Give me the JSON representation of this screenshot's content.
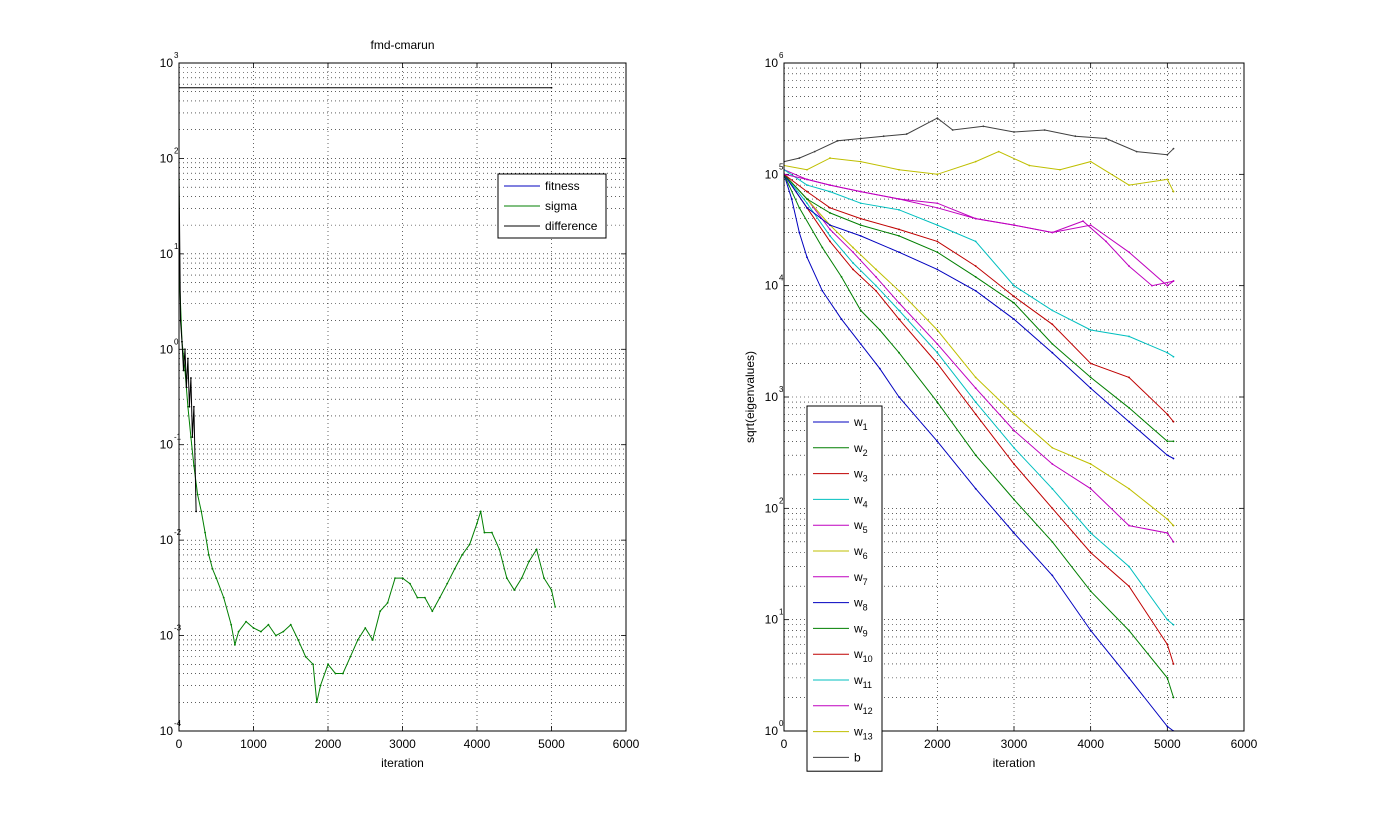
{
  "chart_data": [
    {
      "type": "line",
      "title": "fmd-cmarun",
      "xlabel": "iteration",
      "ylabel": "",
      "xlim": [
        0,
        6000
      ],
      "ylim": [
        0.0001,
        1000
      ],
      "yscale": "log",
      "grid": true,
      "legend_position": "upper-right",
      "x_ticks": [
        0,
        1000,
        2000,
        3000,
        4000,
        5000,
        6000
      ],
      "y_ticks": [
        {
          "value": 0.0001,
          "base": "10",
          "exp": "-4"
        },
        {
          "value": 0.001,
          "base": "10",
          "exp": "-3"
        },
        {
          "value": 0.01,
          "base": "10",
          "exp": "-2"
        },
        {
          "value": 0.1,
          "base": "10",
          "exp": "-1"
        },
        {
          "value": 1,
          "base": "10",
          "exp": "0"
        },
        {
          "value": 10,
          "base": "10",
          "exp": "1"
        },
        {
          "value": 100,
          "base": "10",
          "exp": "2"
        },
        {
          "value": 1000,
          "base": "10",
          "exp": "3"
        }
      ],
      "series": [
        {
          "name": "fitness",
          "color": "#0000bf",
          "x": [],
          "y": []
        },
        {
          "name": "sigma",
          "color": "#007f00",
          "x": [
            0,
            10,
            40,
            80,
            120,
            160,
            200,
            250,
            300,
            350,
            400,
            450,
            500,
            600,
            700,
            750,
            800,
            900,
            1000,
            1100,
            1200,
            1300,
            1400,
            1500,
            1600,
            1700,
            1800,
            1850,
            1900,
            2000,
            2100,
            2200,
            2300,
            2400,
            2500,
            2600,
            2700,
            2800,
            2900,
            3000,
            3100,
            3200,
            3300,
            3400,
            3500,
            3600,
            3700,
            3800,
            3900,
            4000,
            4050,
            4100,
            4200,
            4300,
            4400,
            4500,
            4600,
            4700,
            4800,
            4900,
            5000,
            5050
          ],
          "y": [
            60,
            5,
            1.2,
            0.6,
            0.25,
            0.12,
            0.06,
            0.03,
            0.02,
            0.012,
            0.007,
            0.005,
            0.004,
            0.0025,
            0.0013,
            0.0008,
            0.0011,
            0.0014,
            0.0012,
            0.0011,
            0.0013,
            0.001,
            0.0011,
            0.0013,
            0.0009,
            0.0006,
            0.0005,
            0.0002,
            0.0003,
            0.0005,
            0.0004,
            0.0004,
            0.0006,
            0.0009,
            0.0012,
            0.0009,
            0.0018,
            0.0022,
            0.004,
            0.004,
            0.0035,
            0.0025,
            0.0025,
            0.0018,
            0.0025,
            0.0035,
            0.005,
            0.007,
            0.009,
            0.015,
            0.02,
            0.012,
            0.012,
            0.008,
            0.004,
            0.003,
            0.004,
            0.006,
            0.008,
            0.004,
            0.003,
            0.002
          ]
        },
        {
          "name": "difference",
          "color": "#000000",
          "x": [
            0,
            5000
          ],
          "y": [
            550,
            550
          ],
          "x2": [
            0,
            20,
            40,
            60,
            80,
            100,
            120,
            140,
            160,
            180,
            200,
            230
          ],
          "y2": [
            80,
            2,
            1.2,
            0.6,
            1.0,
            0.4,
            0.8,
            0.25,
            0.5,
            0.12,
            0.25,
            0.02
          ]
        }
      ]
    },
    {
      "type": "line",
      "title": "",
      "xlabel": "iteration",
      "ylabel": "sqrt(eigenvalues)",
      "xlim": [
        0,
        6000
      ],
      "ylim": [
        1,
        1000000
      ],
      "yscale": "log",
      "grid": true,
      "legend_position": "lower-left",
      "x_ticks": [
        0,
        1000,
        2000,
        3000,
        4000,
        5000,
        6000
      ],
      "y_ticks": [
        {
          "value": 1,
          "base": "10",
          "exp": "0"
        },
        {
          "value": 10,
          "base": "10",
          "exp": "1"
        },
        {
          "value": 100,
          "base": "10",
          "exp": "2"
        },
        {
          "value": 1000,
          "base": "10",
          "exp": "3"
        },
        {
          "value": 10000,
          "base": "10",
          "exp": "4"
        },
        {
          "value": 100000,
          "base": "10",
          "exp": "5"
        },
        {
          "value": 1000000,
          "base": "10",
          "exp": "6"
        }
      ],
      "series": [
        {
          "name": "w",
          "sub": "1",
          "color": "#0000bf",
          "x": [
            0,
            100,
            200,
            300,
            500,
            750,
            1000,
            1250,
            1500,
            2000,
            2500,
            3000,
            3500,
            4000,
            4500,
            5000,
            5080
          ],
          "y": [
            100000,
            60000,
            30000,
            18000,
            9000,
            5000,
            3000,
            1800,
            1000,
            400,
            150,
            60,
            25,
            8,
            3,
            1.1,
            1
          ]
        },
        {
          "name": "w",
          "sub": "2",
          "color": "#007f00",
          "x": [
            0,
            200,
            500,
            750,
            1000,
            1250,
            1500,
            2000,
            2500,
            3000,
            3500,
            4000,
            4500,
            5000,
            5080
          ],
          "y": [
            100000,
            50000,
            22000,
            12000,
            6000,
            4000,
            2500,
            900,
            300,
            120,
            50,
            18,
            8,
            3,
            2
          ]
        },
        {
          "name": "w",
          "sub": "3",
          "color": "#bf0000",
          "x": [
            0,
            300,
            600,
            900,
            1200,
            1500,
            2000,
            2500,
            3000,
            3500,
            4000,
            4500,
            5000,
            5080
          ],
          "y": [
            100000,
            50000,
            25000,
            14000,
            9000,
            5000,
            2000,
            700,
            250,
            100,
            40,
            20,
            6,
            4
          ]
        },
        {
          "name": "w",
          "sub": "4",
          "color": "#00bfbf",
          "x": [
            0,
            300,
            600,
            900,
            1200,
            1500,
            2000,
            2500,
            3000,
            3500,
            4000,
            4500,
            5000,
            5080
          ],
          "y": [
            100000,
            55000,
            28000,
            16000,
            10000,
            6000,
            2500,
            900,
            350,
            150,
            60,
            30,
            10,
            9
          ]
        },
        {
          "name": "w",
          "sub": "5",
          "color": "#bf00bf",
          "x": [
            0,
            300,
            600,
            900,
            1200,
            1500,
            2000,
            2500,
            3000,
            3500,
            4000,
            4500,
            5000,
            5080
          ],
          "y": [
            100000,
            60000,
            32000,
            20000,
            12000,
            7000,
            3000,
            1200,
            500,
            250,
            150,
            70,
            60,
            50
          ]
        },
        {
          "name": "w",
          "sub": "6",
          "color": "#bfbf00",
          "x": [
            0,
            300,
            600,
            900,
            1200,
            1500,
            2000,
            2500,
            3000,
            3500,
            4000,
            4500,
            5000,
            5080
          ],
          "y": [
            100000,
            60000,
            35000,
            22000,
            14000,
            9000,
            4000,
            1500,
            700,
            350,
            250,
            150,
            80,
            70
          ]
        },
        {
          "name": "w",
          "sub": "7",
          "color": "#bf00bf",
          "x": [
            0,
            300,
            600,
            1000,
            1500,
            2000,
            2500,
            3000,
            3500,
            3900,
            4200,
            4500,
            4800,
            5080
          ],
          "y": [
            110000,
            90000,
            80000,
            70000,
            60000,
            55000,
            40000,
            35000,
            30000,
            38000,
            25000,
            15000,
            10000,
            11000
          ]
        },
        {
          "name": "w",
          "sub": "8",
          "color": "#0000bf",
          "x": [
            0,
            300,
            600,
            1000,
            1500,
            2000,
            2500,
            3000,
            3500,
            4000,
            4500,
            5000,
            5080
          ],
          "y": [
            100000,
            50000,
            35000,
            28000,
            20000,
            14000,
            9000,
            5000,
            2500,
            1200,
            600,
            300,
            280
          ]
        },
        {
          "name": "w",
          "sub": "9",
          "color": "#007f00",
          "x": [
            0,
            300,
            600,
            1000,
            1500,
            2000,
            2500,
            3000,
            3500,
            4000,
            4500,
            5000,
            5080
          ],
          "y": [
            100000,
            60000,
            45000,
            35000,
            28000,
            20000,
            12000,
            7000,
            3000,
            1500,
            800,
            400,
            400
          ]
        },
        {
          "name": "w",
          "sub": "10",
          "color": "#bf0000",
          "x": [
            0,
            300,
            600,
            1000,
            1500,
            2000,
            2500,
            3000,
            3500,
            4000,
            4500,
            5000,
            5080
          ],
          "y": [
            100000,
            70000,
            50000,
            40000,
            32000,
            25000,
            15000,
            8000,
            4500,
            2000,
            1500,
            700,
            600
          ]
        },
        {
          "name": "w",
          "sub": "11",
          "color": "#00bfbf",
          "x": [
            0,
            300,
            600,
            1000,
            1500,
            2000,
            2500,
            3000,
            3500,
            4000,
            4500,
            5000,
            5080
          ],
          "y": [
            110000,
            80000,
            70000,
            55000,
            48000,
            35000,
            25000,
            10000,
            6000,
            4000,
            3500,
            2500,
            2300
          ]
        },
        {
          "name": "w",
          "sub": "12",
          "color": "#bf00bf",
          "x": [
            0,
            300,
            600,
            1000,
            1500,
            2000,
            2500,
            3000,
            3500,
            4000,
            4500,
            5000,
            5080
          ],
          "y": [
            100000,
            90000,
            80000,
            70000,
            60000,
            50000,
            40000,
            35000,
            30000,
            35000,
            20000,
            10000,
            11000
          ]
        },
        {
          "name": "w",
          "sub": "13",
          "color": "#bfbf00",
          "x": [
            0,
            300,
            600,
            1000,
            1500,
            2000,
            2500,
            2800,
            3200,
            3600,
            4000,
            4500,
            5000,
            5080
          ],
          "y": [
            120000,
            110000,
            140000,
            130000,
            110000,
            100000,
            130000,
            160000,
            120000,
            110000,
            130000,
            80000,
            90000,
            70000
          ]
        },
        {
          "name": "b",
          "sub": "",
          "color": "#3f3f3f",
          "x": [
            0,
            200,
            400,
            700,
            1000,
            1300,
            1600,
            2000,
            2200,
            2600,
            3000,
            3400,
            3800,
            4200,
            4600,
            5000,
            5080
          ],
          "y": [
            130000,
            140000,
            160000,
            200000,
            210000,
            220000,
            230000,
            320000,
            250000,
            270000,
            240000,
            250000,
            220000,
            210000,
            160000,
            150000,
            170000
          ]
        }
      ]
    }
  ]
}
